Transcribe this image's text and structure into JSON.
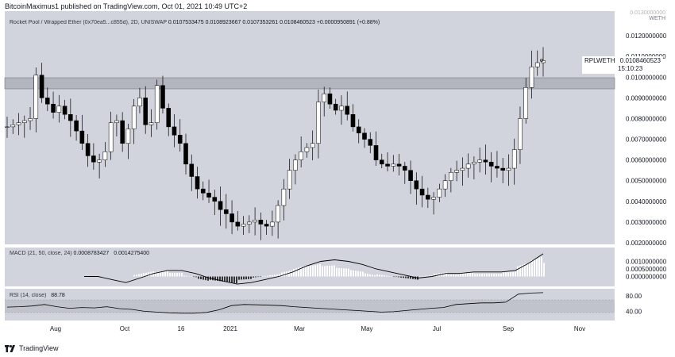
{
  "header": {
    "author": "BitcoinMaximus1",
    "published_text": "published on TradingView.com, Oct 01, 2021 10:49 UTC+2"
  },
  "main_legend": {
    "symbol": "Rocket Pool / Wrapped Ether (0x70ea5...c855d), 2D, UNISWAP",
    "open": "0.0107533475",
    "high": "0.0108923667",
    "low": "0.0107353261",
    "close": "0.0108460523",
    "change": "+0.0000950891 (+0.88%)"
  },
  "price_tag": {
    "symbol": "RPLWETH",
    "price": "0.0108460523",
    "countdown": "15:10:23"
  },
  "price_axis": {
    "top_labels": [
      "0.0130000000",
      "WETH"
    ],
    "ticks": [
      "0.0120000000",
      "0.0110000000",
      "0.0100000000",
      "0.0090000000",
      "0.0080000000",
      "0.0070000000",
      "0.0060000000",
      "0.0050000000",
      "0.0040000000",
      "0.0030000000",
      "0.0020000000"
    ]
  },
  "macd_legend": {
    "label": "MACD (21, 50, close, 24)",
    "v1": "0.0008783427",
    "v2": "0.0014275400"
  },
  "macd_axis": {
    "ticks": [
      "0.0010000000",
      "0.0005000000",
      "0.0000000000"
    ]
  },
  "rsi_legend": {
    "label": "RSI (14, close)",
    "value": "88.78"
  },
  "rsi_axis": {
    "ticks": [
      "80.00",
      "40.00"
    ]
  },
  "time_axis": {
    "labels": [
      "Aug",
      "Oct",
      "16",
      "2021",
      "Mar",
      "May",
      "Jul",
      "Sep",
      "Nov"
    ]
  },
  "footer": {
    "brand": "TradingView"
  },
  "colors": {
    "pane_bg": "#d1d4dc",
    "candle": "#000000",
    "resistance_band": "#b2b5be",
    "rsi_band": "#c0c3cb"
  },
  "chart_data": {
    "type": "candlestick",
    "symbol": "RPLWETH",
    "interval": "2D",
    "y_unit": "WETH",
    "ylim": [
      0.002,
      0.013
    ],
    "resistance_zone": [
      0.0095,
      0.0099
    ],
    "x_labels": [
      "Aug",
      "Oct",
      "16",
      "2021",
      "Mar",
      "May",
      "Jul",
      "Sep",
      "Nov"
    ],
    "close_path": [
      0.0076,
      0.0077,
      0.0078,
      0.0079,
      0.008,
      0.0101,
      0.009,
      0.0087,
      0.0083,
      0.0086,
      0.0082,
      0.0079,
      0.0074,
      0.0068,
      0.0062,
      0.0059,
      0.006,
      0.0064,
      0.0078,
      0.0079,
      0.0068,
      0.0075,
      0.0086,
      0.009,
      0.0077,
      0.0078,
      0.0096,
      0.0085,
      0.0076,
      0.0072,
      0.0068,
      0.0058,
      0.0052,
      0.0046,
      0.0044,
      0.0042,
      0.004,
      0.0036,
      0.0034,
      0.003,
      0.0028,
      0.0029,
      0.003,
      0.0031,
      0.0029,
      0.0028,
      0.003,
      0.0038,
      0.0046,
      0.0055,
      0.006,
      0.0064,
      0.0066,
      0.0068,
      0.0088,
      0.0092,
      0.0087,
      0.0084,
      0.0086,
      0.0082,
      0.0076,
      0.0073,
      0.007,
      0.0067,
      0.006,
      0.0058,
      0.0057,
      0.0058,
      0.0057,
      0.0055,
      0.005,
      0.0046,
      0.0043,
      0.0041,
      0.0042,
      0.0046,
      0.005,
      0.0054,
      0.0055,
      0.0056,
      0.0058,
      0.0059,
      0.006,
      0.0059,
      0.0057,
      0.0056,
      0.0055,
      0.0056,
      0.0065,
      0.008,
      0.0095,
      0.0105,
      0.0107,
      0.0108
    ],
    "macd_line": [
      0.0,
      0.0,
      -0.0002,
      -0.0004,
      -0.0001,
      0.0002,
      0.0004,
      0.0004,
      0.0002,
      -0.0001,
      -0.0003,
      -0.0005,
      -0.0004,
      -0.0002,
      0.0,
      0.0003,
      0.0007,
      0.001,
      0.0011,
      0.001,
      0.0008,
      0.0005,
      0.0003,
      0.0001,
      -0.0001,
      0.0,
      0.0002,
      0.0002,
      0.0003,
      0.0003,
      0.0003,
      0.0004,
      0.0009,
      0.0015
    ],
    "rsi": [
      51,
      52,
      54,
      58,
      52,
      48,
      50,
      49,
      52,
      47,
      45,
      40,
      38,
      36,
      35,
      35,
      37,
      44,
      55,
      58,
      57,
      56,
      55,
      52,
      50,
      48,
      46,
      44,
      42,
      40,
      38,
      39,
      42,
      45,
      48,
      50,
      58,
      60,
      62,
      62,
      64,
      85,
      88,
      89
    ],
    "rsi_levels": [
      80,
      40
    ]
  }
}
